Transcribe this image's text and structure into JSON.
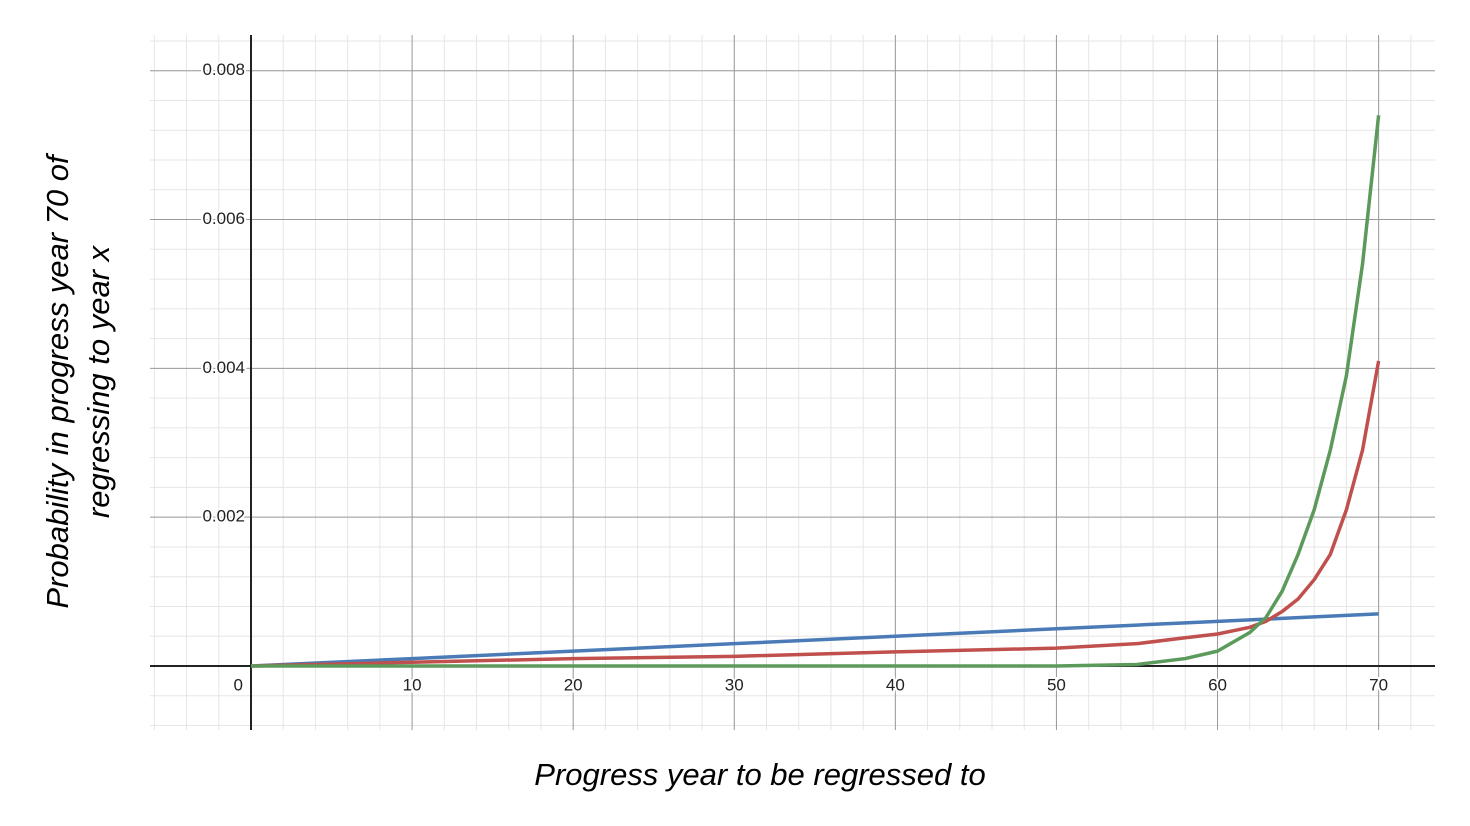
{
  "chart_data": {
    "type": "line",
    "xlabel": "Progress year to be regressed to",
    "ylabel": [
      "Probability in progress year 70 of",
      "regressing to year x"
    ],
    "x": [
      0,
      10,
      20,
      30,
      40,
      50,
      55,
      58,
      60,
      62,
      63,
      64,
      65,
      66,
      67,
      68,
      69,
      70
    ],
    "series": [
      {
        "color": "#4a7bb7",
        "values": [
          0,
          0.0001,
          0.0002,
          0.0003,
          0.0004,
          0.0005,
          0.00055,
          0.00058,
          0.0006,
          0.00062,
          0.00063,
          0.00064,
          0.00065,
          0.00066,
          0.00067,
          0.00068,
          0.00069,
          0.0007
        ]
      },
      {
        "color": "#c0504d",
        "values": [
          0,
          5e-05,
          0.0001,
          0.00013,
          0.00019,
          0.00024,
          0.0003,
          0.00038,
          0.00043,
          0.00052,
          0.0006,
          0.00073,
          0.0009,
          0.00116,
          0.0015,
          0.0021,
          0.0029,
          0.0041
        ]
      },
      {
        "color": "#5b9a5b",
        "values": [
          0,
          0,
          0,
          0,
          0,
          0,
          2e-05,
          0.0001,
          0.0002,
          0.00045,
          0.00065,
          0.001,
          0.0015,
          0.0021,
          0.0029,
          0.0039,
          0.0054,
          0.0074
        ]
      }
    ],
    "xlim": [
      -6.27,
      73.5
    ],
    "ylim": [
      -0.00086,
      0.00848
    ],
    "xticks": [
      0,
      10,
      20,
      30,
      40,
      50,
      60,
      70
    ],
    "yticks": [
      0.002,
      0.004,
      0.006,
      0.008
    ],
    "grid": true
  }
}
